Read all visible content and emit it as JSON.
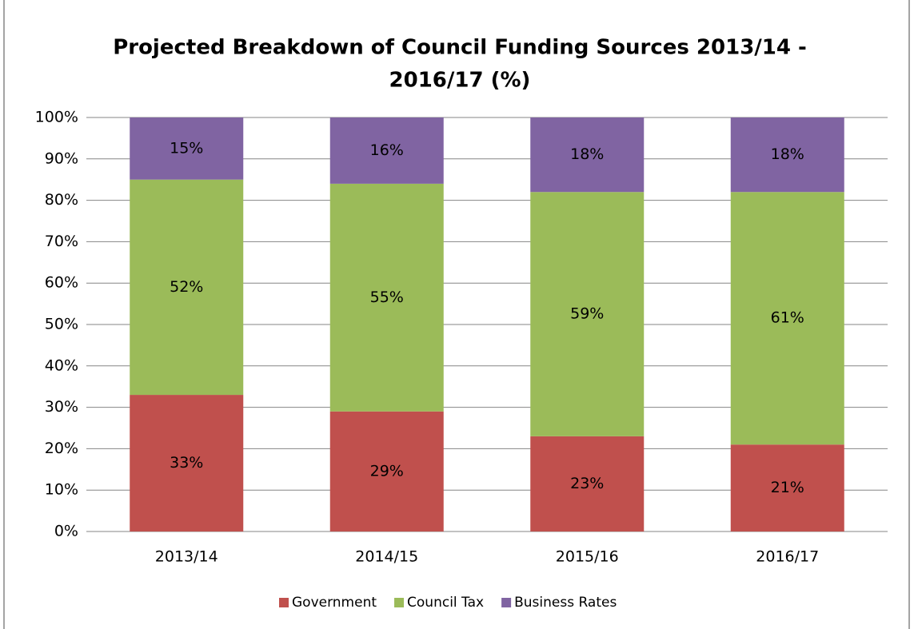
{
  "chart_data": {
    "type": "stacked_bar",
    "title": [
      "Projected Breakdown of Council Funding Sources 2013/14 -",
      "2016/17  (%)"
    ],
    "categories": [
      "2013/14",
      "2014/15",
      "2015/16",
      "2016/17"
    ],
    "series": [
      {
        "name": "Government",
        "color": "#c0504d",
        "values": [
          33,
          29,
          23,
          21
        ],
        "value_labels": [
          "33%",
          "29%",
          "23%",
          "21%"
        ]
      },
      {
        "name": "Council Tax",
        "color": "#9bbb59",
        "values": [
          52,
          55,
          59,
          61
        ],
        "value_labels": [
          "52%",
          "55%",
          "59%",
          "61%"
        ]
      },
      {
        "name": "Business Rates",
        "color": "#8064a2",
        "values": [
          15,
          16,
          18,
          18
        ],
        "value_labels": [
          "15%",
          "16%",
          "18%",
          "18%"
        ]
      }
    ],
    "ylim": [
      0,
      100
    ],
    "yticks": [
      {
        "value": 0,
        "label": "0%"
      },
      {
        "value": 10,
        "label": "10%"
      },
      {
        "value": 20,
        "label": "20%"
      },
      {
        "value": 30,
        "label": "30%"
      },
      {
        "value": 40,
        "label": "40%"
      },
      {
        "value": 50,
        "label": "50%"
      },
      {
        "value": 60,
        "label": "60%"
      },
      {
        "value": 70,
        "label": "70%"
      },
      {
        "value": 80,
        "label": "80%"
      },
      {
        "value": 90,
        "label": "90%"
      },
      {
        "value": 100,
        "label": "100%"
      }
    ],
    "grid": true,
    "legend": "bottom"
  }
}
